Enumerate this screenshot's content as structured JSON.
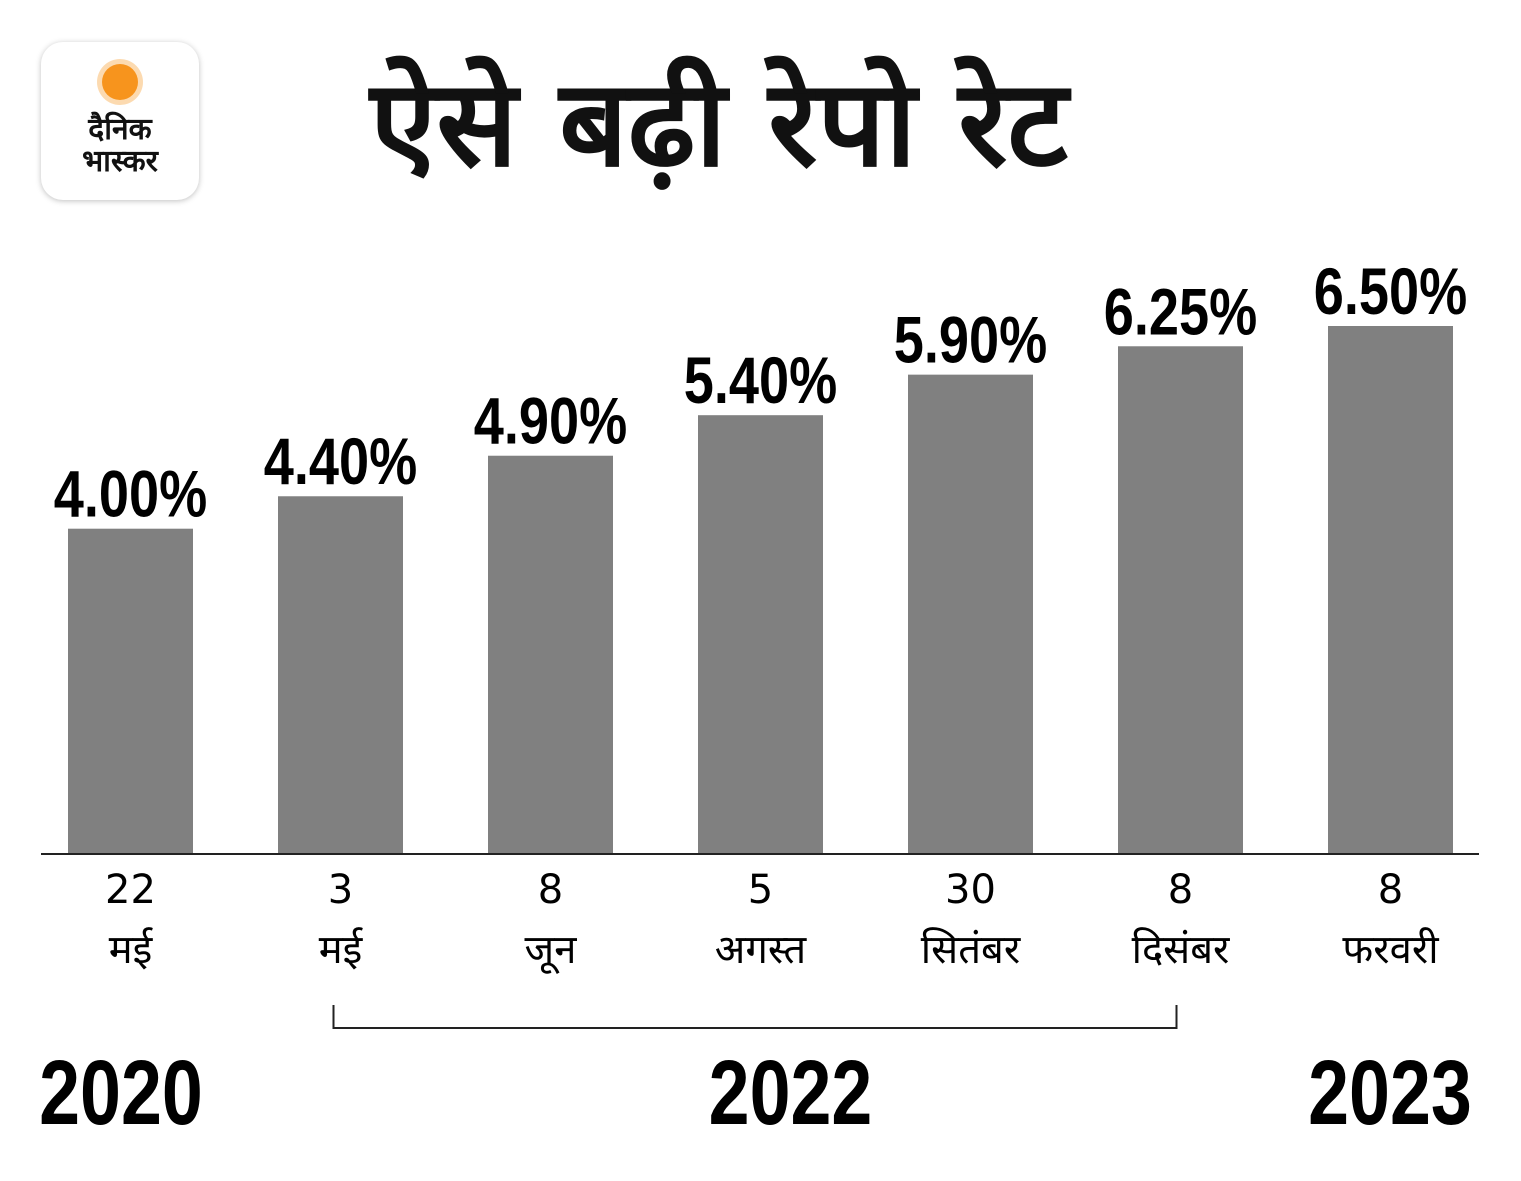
{
  "logo": {
    "line1": "दैनिक",
    "line2": "भास्कर",
    "sun_color": "#f7941d"
  },
  "title": "ऐसे बढ़ी रेपो रेट",
  "chart_data": {
    "type": "bar",
    "title": "ऐसे बढ़ी रेपो रेट",
    "categories": [
      {
        "day": "22",
        "month": "मई",
        "year": "2020"
      },
      {
        "day": "3",
        "month": "मई",
        "year": "2022"
      },
      {
        "day": "8",
        "month": "जून",
        "year": "2022"
      },
      {
        "day": "5",
        "month": "अगस्त",
        "year": "2022"
      },
      {
        "day": "30",
        "month": "सितंबर",
        "year": "2022"
      },
      {
        "day": "8",
        "month": "दिसंबर",
        "year": "2022"
      },
      {
        "day": "8",
        "month": "फरवरी",
        "year": "2023"
      }
    ],
    "values": [
      4.0,
      4.4,
      4.9,
      5.4,
      5.9,
      6.25,
      6.5
    ],
    "data_labels": [
      "4.00%",
      "4.40%",
      "4.90%",
      "5.40%",
      "5.90%",
      "6.25%",
      "6.50%"
    ],
    "year_groups": [
      {
        "label": "2020",
        "from": 0,
        "to": 0
      },
      {
        "label": "2022",
        "from": 1,
        "to": 5
      },
      {
        "label": "2023",
        "from": 6,
        "to": 6
      }
    ],
    "ylim": [
      0,
      6.5
    ],
    "grid": false,
    "bar_color": "#808080",
    "xlabel": "",
    "ylabel": ""
  }
}
